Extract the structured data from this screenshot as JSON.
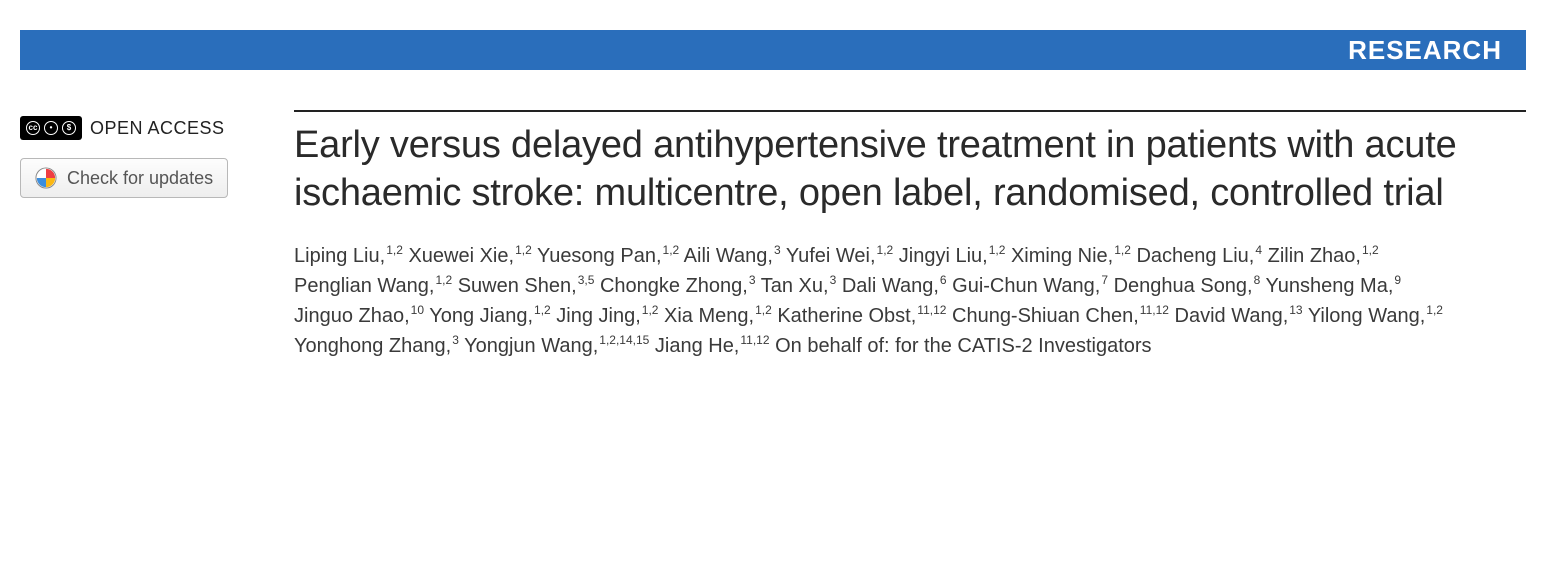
{
  "banner": {
    "label": "RESEARCH",
    "bg_color": "#2a6ebb",
    "text_color": "#ffffff"
  },
  "sidebar": {
    "open_access_label": "OPEN ACCESS",
    "cc_symbols": [
      "cc",
      "by",
      "nc"
    ],
    "check_updates_label": "Check for updates"
  },
  "article": {
    "title": "Early versus delayed antihypertensive treatment in patients with acute ischaemic stroke: multicentre, open label, randomised, controlled trial",
    "authors": [
      {
        "name": "Liping Liu",
        "affil": "1,2"
      },
      {
        "name": "Xuewei Xie",
        "affil": "1,2"
      },
      {
        "name": "Yuesong Pan",
        "affil": "1,2"
      },
      {
        "name": "Aili Wang",
        "affil": "3"
      },
      {
        "name": "Yufei Wei",
        "affil": "1,2"
      },
      {
        "name": "Jingyi Liu",
        "affil": "1,2"
      },
      {
        "name": "Ximing Nie",
        "affil": "1,2"
      },
      {
        "name": "Dacheng Liu",
        "affil": "4"
      },
      {
        "name": "Zilin Zhao",
        "affil": "1,2"
      },
      {
        "name": "Penglian Wang",
        "affil": "1,2"
      },
      {
        "name": "Suwen Shen",
        "affil": "3,5"
      },
      {
        "name": "Chongke Zhong",
        "affil": "3"
      },
      {
        "name": "Tan Xu",
        "affil": "3"
      },
      {
        "name": "Dali Wang",
        "affil": "6"
      },
      {
        "name": "Gui-Chun Wang",
        "affil": "7"
      },
      {
        "name": "Denghua Song",
        "affil": "8"
      },
      {
        "name": "Yunsheng Ma",
        "affil": "9"
      },
      {
        "name": "Jinguo Zhao",
        "affil": "10"
      },
      {
        "name": "Yong Jiang",
        "affil": "1,2"
      },
      {
        "name": "Jing Jing",
        "affil": "1,2"
      },
      {
        "name": "Xia Meng",
        "affil": "1,2"
      },
      {
        "name": "Katherine Obst",
        "affil": "11,12"
      },
      {
        "name": "Chung-Shiuan Chen",
        "affil": "11,12"
      },
      {
        "name": "David Wang",
        "affil": "13"
      },
      {
        "name": "Yilong Wang",
        "affil": "1,2"
      },
      {
        "name": "Yonghong Zhang",
        "affil": "3"
      },
      {
        "name": "Yongjun Wang",
        "affil": "1,2,14,15"
      },
      {
        "name": "Jiang He",
        "affil": "11,12"
      }
    ],
    "author_suffix": "On behalf of: for the CATIS-2 Investigators"
  },
  "colors": {
    "title_color": "#2a2a2a",
    "author_color": "#3a3a3a",
    "rule_color": "#222222"
  }
}
